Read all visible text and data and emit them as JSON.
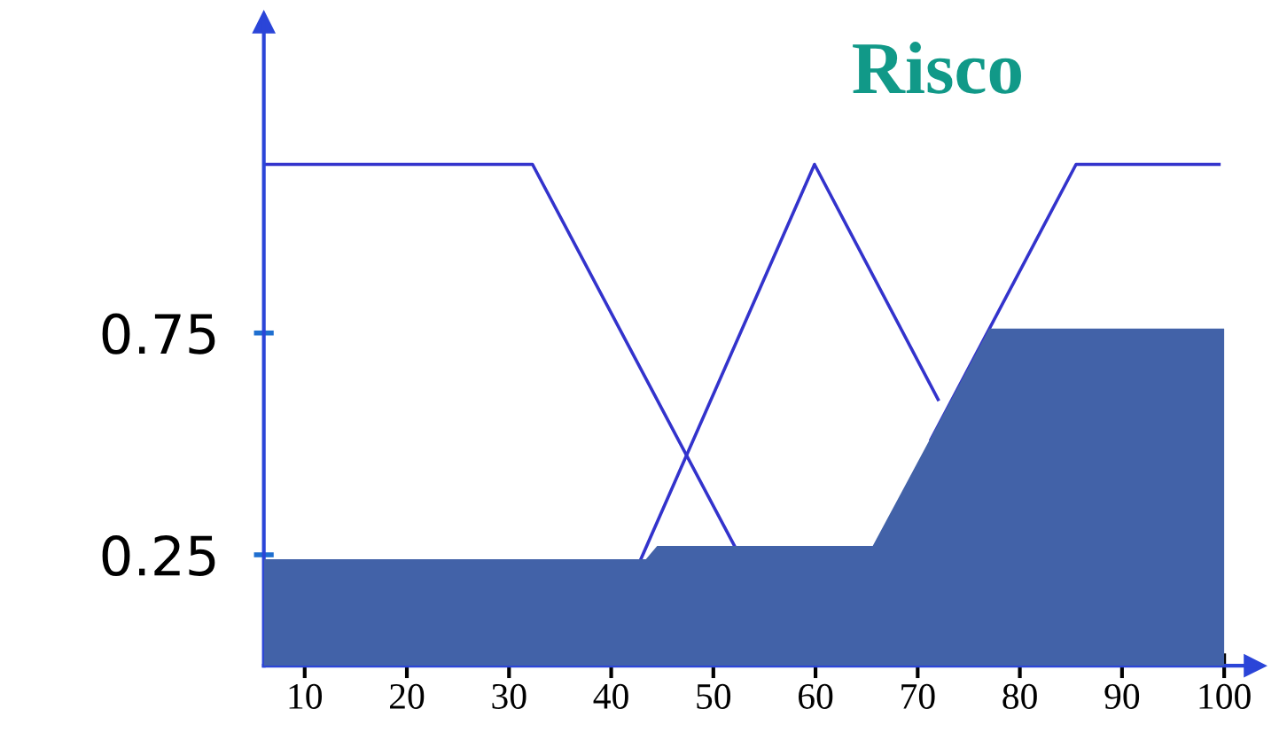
{
  "chart_data": {
    "type": "line",
    "title": "Risco",
    "xlim": [
      6,
      103
    ],
    "ylim": [
      0,
      1.45
    ],
    "xticks": [
      10,
      20,
      30,
      40,
      50,
      60,
      70,
      80,
      90,
      100
    ],
    "yticks": [
      0.25,
      0.75
    ],
    "grid": false,
    "legend": false,
    "marker": "none",
    "line_style": "solid",
    "series": [
      {
        "type": "area",
        "color": "#4262a8",
        "x": [
          6,
          43.4,
          44.5,
          65.6,
          77,
          100
        ],
        "values": [
          0.24,
          0.24,
          0.27,
          0.27,
          0.76,
          0.76
        ]
      },
      {
        "color": "#3333cc",
        "x": [
          6,
          32.3,
          52.3
        ],
        "values": [
          1.13,
          1.13,
          0.26
        ]
      },
      {
        "color": "#3333cc",
        "x": [
          42.9,
          59.9,
          72
        ],
        "values": [
          0.24,
          1.13,
          0.6
        ]
      },
      {
        "color": "#3333cc",
        "x": [
          71.3,
          85.5,
          99.5
        ],
        "values": [
          0.51,
          1.13,
          1.13
        ]
      }
    ]
  }
}
